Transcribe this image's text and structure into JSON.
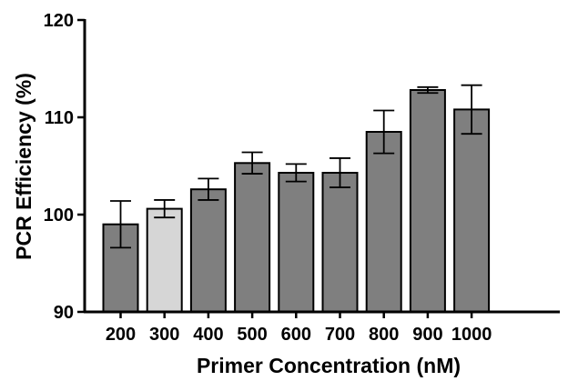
{
  "chart_data": {
    "type": "bar",
    "title": "",
    "xlabel": "Primer Concentration (nM)",
    "ylabel": "PCR Efficiency (%)",
    "ylim": [
      90,
      120
    ],
    "yticks": [
      90,
      100,
      110,
      120
    ],
    "grid": false,
    "categories": [
      "200",
      "300",
      "400",
      "500",
      "600",
      "700",
      "800",
      "900",
      "1000"
    ],
    "values": [
      99.0,
      100.6,
      102.6,
      105.3,
      104.3,
      104.3,
      108.5,
      112.8,
      110.8
    ],
    "errors": [
      2.4,
      0.9,
      1.1,
      1.1,
      0.9,
      1.5,
      2.2,
      0.3,
      2.5
    ],
    "colors": {
      "bar": "#7f7f7f",
      "highlight_bar": "#d6d6d6",
      "highlight_category": "300",
      "outline": "#000000",
      "axis": "#000000"
    }
  }
}
